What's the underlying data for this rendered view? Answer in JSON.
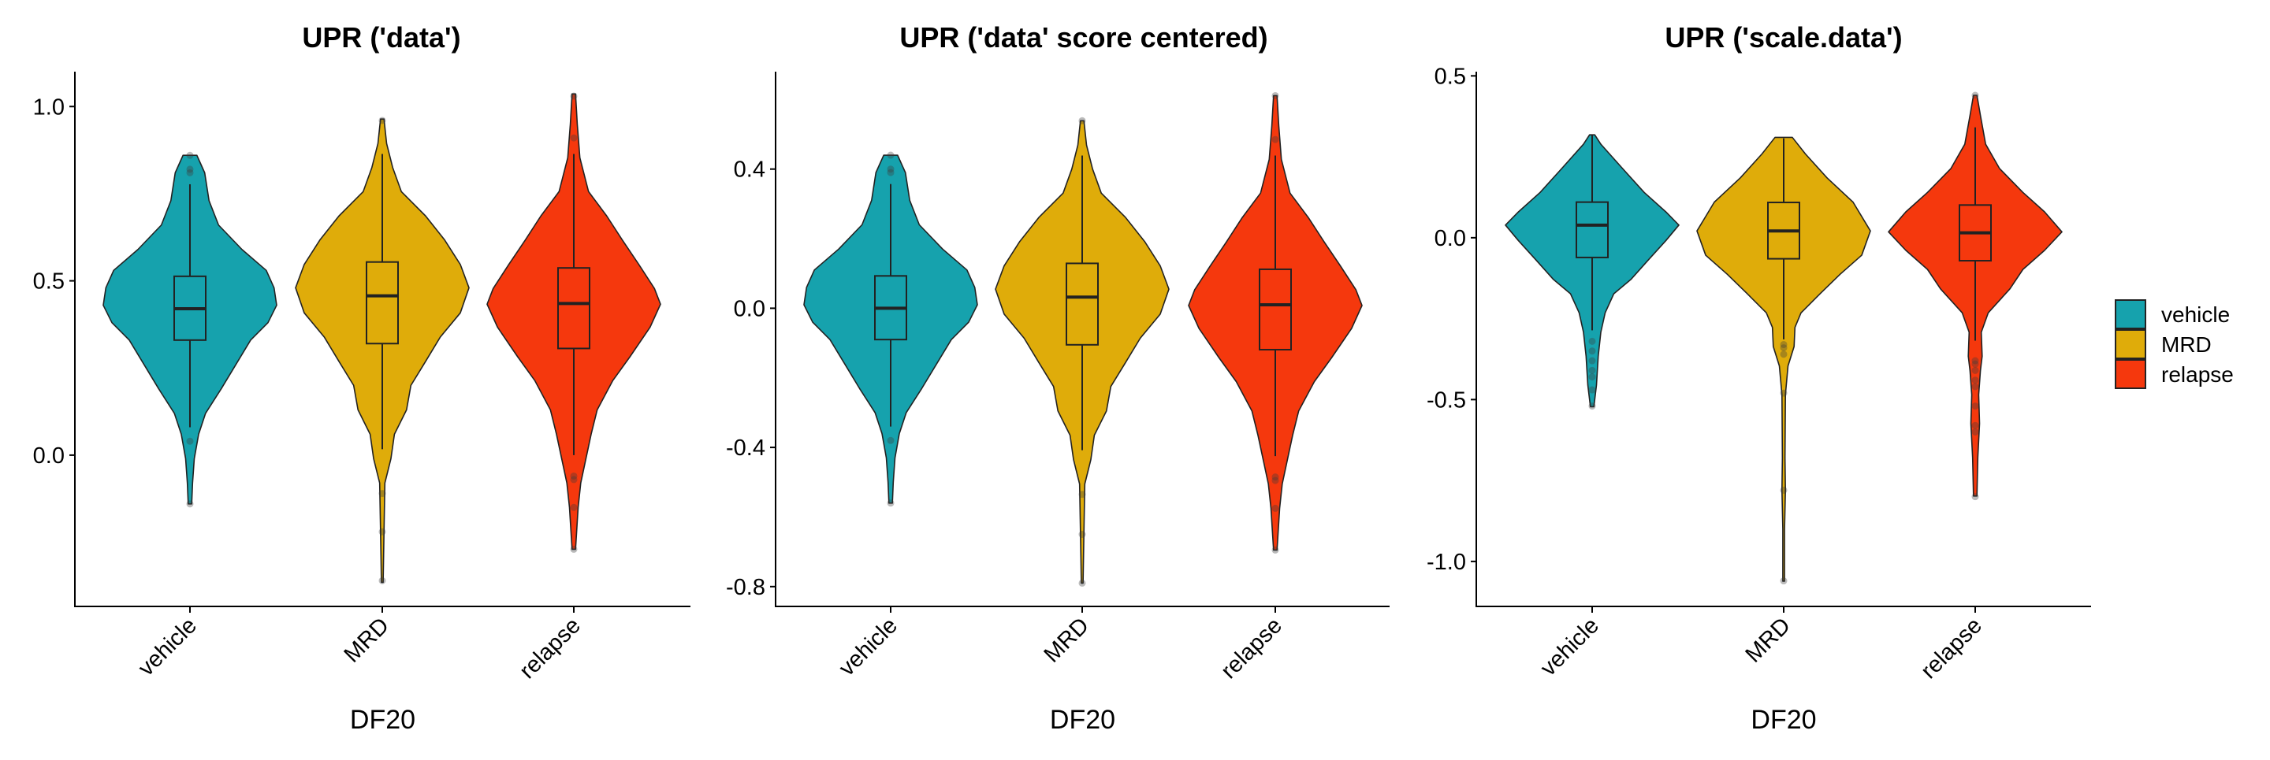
{
  "chart_data": [
    {
      "type": "violin",
      "title": "UPR ('data')",
      "xlabel": "DF20",
      "ylabel": "",
      "ylim": [
        -0.434,
        1.1
      ],
      "yticks": [
        0.0,
        0.5,
        1.0
      ],
      "ytick_labels": [
        "0.0",
        "0.5",
        "1.0"
      ],
      "categories": [
        "vehicle",
        "MRD",
        "relapse"
      ],
      "groups": [
        {
          "name": "vehicle",
          "profile": [
            [
              0.86,
              0.08
            ],
            [
              0.81,
              0.17
            ],
            [
              0.73,
              0.22
            ],
            [
              0.66,
              0.33
            ],
            [
              0.59,
              0.6
            ],
            [
              0.53,
              0.88
            ],
            [
              0.48,
              0.97
            ],
            [
              0.43,
              1.0
            ],
            [
              0.38,
              0.9
            ],
            [
              0.33,
              0.7
            ],
            [
              0.26,
              0.53
            ],
            [
              0.19,
              0.36
            ],
            [
              0.12,
              0.18
            ],
            [
              0.06,
              0.1
            ],
            [
              -0.01,
              0.05
            ],
            [
              -0.08,
              0.03
            ],
            [
              -0.14,
              0.02
            ]
          ],
          "box": {
            "q1": 0.33,
            "median": 0.42,
            "q3": 0.513,
            "whisker_low": 0.08,
            "whisker_high": 0.777
          },
          "outliers": [
            0.86,
            0.82,
            0.81,
            0.04,
            -0.14
          ]
        },
        {
          "name": "MRD",
          "profile": [
            [
              0.964,
              0.02
            ],
            [
              0.894,
              0.05
            ],
            [
              0.825,
              0.12
            ],
            [
              0.756,
              0.22
            ],
            [
              0.686,
              0.5
            ],
            [
              0.617,
              0.72
            ],
            [
              0.547,
              0.9
            ],
            [
              0.48,
              1.0
            ],
            [
              0.408,
              0.9
            ],
            [
              0.339,
              0.67
            ],
            [
              0.269,
              0.5
            ],
            [
              0.2,
              0.33
            ],
            [
              0.13,
              0.28
            ],
            [
              0.06,
              0.14
            ],
            [
              -0.01,
              0.1
            ],
            [
              -0.08,
              0.03
            ],
            [
              -0.22,
              0.02
            ],
            [
              -0.365,
              0.01
            ]
          ],
          "box": {
            "q1": 0.32,
            "median": 0.457,
            "q3": 0.554,
            "whisker_low": 0.017,
            "whisker_high": 0.864
          },
          "outliers": [
            0.96,
            -0.11,
            -0.22,
            -0.36
          ]
        },
        {
          "name": "relapse",
          "profile": [
            [
              1.036,
              0.02
            ],
            [
              0.95,
              0.04
            ],
            [
              0.853,
              0.07
            ],
            [
              0.756,
              0.17
            ],
            [
              0.686,
              0.38
            ],
            [
              0.617,
              0.56
            ],
            [
              0.547,
              0.75
            ],
            [
              0.478,
              0.93
            ],
            [
              0.433,
              1.0
            ],
            [
              0.367,
              0.88
            ],
            [
              0.283,
              0.65
            ],
            [
              0.214,
              0.45
            ],
            [
              0.13,
              0.27
            ],
            [
              0.06,
              0.2
            ],
            [
              -0.01,
              0.14
            ],
            [
              -0.08,
              0.08
            ],
            [
              -0.15,
              0.05
            ],
            [
              -0.27,
              0.02
            ]
          ],
          "box": {
            "q1": 0.306,
            "median": 0.435,
            "q3": 0.537,
            "whisker_low": 0.0,
            "whisker_high": 0.864
          },
          "outliers": [
            1.03,
            0.91,
            -0.06,
            -0.07,
            -0.15,
            -0.27
          ]
        }
      ]
    },
    {
      "type": "violin",
      "title": "UPR ('data' score centered)",
      "xlabel": "DF20",
      "ylabel": "",
      "ylim": [
        -0.857,
        0.68
      ],
      "yticks": [
        -0.8,
        -0.4,
        0.0,
        0.4
      ],
      "ytick_labels": [
        "-0.8",
        "-0.4",
        "0.0",
        "0.4"
      ],
      "categories": [
        "vehicle",
        "MRD",
        "relapse"
      ],
      "groups": [
        {
          "name": "vehicle",
          "profile": [
            [
              0.44,
              0.08
            ],
            [
              0.39,
              0.17
            ],
            [
              0.31,
              0.22
            ],
            [
              0.24,
              0.33
            ],
            [
              0.17,
              0.6
            ],
            [
              0.11,
              0.88
            ],
            [
              0.06,
              0.97
            ],
            [
              0.01,
              1.0
            ],
            [
              -0.04,
              0.9
            ],
            [
              -0.09,
              0.7
            ],
            [
              -0.16,
              0.53
            ],
            [
              -0.23,
              0.36
            ],
            [
              -0.3,
              0.18
            ],
            [
              -0.36,
              0.1
            ],
            [
              -0.43,
              0.05
            ],
            [
              -0.5,
              0.03
            ],
            [
              -0.56,
              0.02
            ]
          ],
          "box": {
            "q1": -0.09,
            "median": 0.0,
            "q3": 0.093,
            "whisker_low": -0.34,
            "whisker_high": 0.357
          },
          "outliers": [
            0.44,
            0.4,
            0.39,
            -0.38,
            -0.56
          ]
        },
        {
          "name": "MRD",
          "profile": [
            [
              0.539,
              0.02
            ],
            [
              0.469,
              0.05
            ],
            [
              0.4,
              0.12
            ],
            [
              0.331,
              0.22
            ],
            [
              0.261,
              0.5
            ],
            [
              0.192,
              0.72
            ],
            [
              0.122,
              0.9
            ],
            [
              0.055,
              1.0
            ],
            [
              -0.017,
              0.9
            ],
            [
              -0.086,
              0.67
            ],
            [
              -0.156,
              0.5
            ],
            [
              -0.225,
              0.33
            ],
            [
              -0.295,
              0.28
            ],
            [
              -0.365,
              0.14
            ],
            [
              -0.435,
              0.1
            ],
            [
              -0.505,
              0.03
            ],
            [
              -0.645,
              0.02
            ],
            [
              -0.79,
              0.01
            ]
          ],
          "box": {
            "q1": -0.105,
            "median": 0.032,
            "q3": 0.129,
            "whisker_low": -0.408,
            "whisker_high": 0.439
          },
          "outliers": [
            0.539,
            -0.535,
            -0.65,
            -0.79
          ]
        },
        {
          "name": "relapse",
          "profile": [
            [
              0.611,
              0.02
            ],
            [
              0.525,
              0.04
            ],
            [
              0.428,
              0.07
            ],
            [
              0.331,
              0.17
            ],
            [
              0.261,
              0.38
            ],
            [
              0.192,
              0.56
            ],
            [
              0.122,
              0.75
            ],
            [
              0.053,
              0.93
            ],
            [
              0.008,
              1.0
            ],
            [
              -0.058,
              0.88
            ],
            [
              -0.142,
              0.65
            ],
            [
              -0.211,
              0.45
            ],
            [
              -0.295,
              0.27
            ],
            [
              -0.365,
              0.2
            ],
            [
              -0.435,
              0.14
            ],
            [
              -0.505,
              0.08
            ],
            [
              -0.575,
              0.05
            ],
            [
              -0.695,
              0.02
            ]
          ],
          "box": {
            "q1": -0.119,
            "median": 0.01,
            "q3": 0.112,
            "whisker_low": -0.425,
            "whisker_high": 0.439
          },
          "outliers": [
            0.611,
            0.485,
            -0.485,
            -0.495,
            -0.575,
            -0.695
          ]
        }
      ]
    },
    {
      "type": "violin",
      "title": "UPR ('scale.data')",
      "xlabel": "DF20",
      "ylabel": "",
      "ylim": [
        -1.139,
        0.513
      ],
      "yticks": [
        -1.0,
        -0.5,
        0.0,
        0.5
      ],
      "ytick_labels": [
        "-1.0",
        "-0.5",
        "0.0",
        "0.5"
      ],
      "categories": [
        "vehicle",
        "MRD",
        "relapse"
      ],
      "groups": [
        {
          "name": "vehicle",
          "profile": [
            [
              0.318,
              0.03
            ],
            [
              0.289,
              0.1
            ],
            [
              0.214,
              0.35
            ],
            [
              0.14,
              0.6
            ],
            [
              0.08,
              0.85
            ],
            [
              0.039,
              1.0
            ],
            [
              -0.009,
              0.85
            ],
            [
              -0.068,
              0.65
            ],
            [
              -0.128,
              0.45
            ],
            [
              -0.173,
              0.25
            ],
            [
              -0.232,
              0.15
            ],
            [
              -0.292,
              0.1
            ],
            [
              -0.366,
              0.07
            ],
            [
              -0.455,
              0.05
            ],
            [
              -0.522,
              0.02
            ]
          ],
          "box": {
            "q1": -0.061,
            "median": 0.039,
            "q3": 0.11,
            "whisker_low": -0.286,
            "whisker_high": 0.316
          },
          "outliers": [
            -0.32,
            -0.35,
            -0.38,
            -0.41,
            -0.43,
            -0.47,
            -0.52
          ]
        },
        {
          "name": "MRD",
          "profile": [
            [
              0.31,
              0.1
            ],
            [
              0.259,
              0.25
            ],
            [
              0.185,
              0.5
            ],
            [
              0.11,
              0.8
            ],
            [
              0.021,
              1.0
            ],
            [
              -0.054,
              0.9
            ],
            [
              -0.113,
              0.65
            ],
            [
              -0.173,
              0.42
            ],
            [
              -0.232,
              0.2
            ],
            [
              -0.277,
              0.13
            ],
            [
              -0.336,
              0.12
            ],
            [
              -0.396,
              0.05
            ],
            [
              -0.485,
              0.02
            ],
            [
              -0.68,
              0.015
            ],
            [
              -0.78,
              0.02
            ],
            [
              -0.9,
              0.01
            ],
            [
              -1.061,
              0.01
            ]
          ],
          "box": {
            "q1": -0.065,
            "median": 0.021,
            "q3": 0.109,
            "whisker_low": -0.314,
            "whisker_high": 0.307
          },
          "outliers": [
            -0.33,
            -0.34,
            -0.36,
            -0.48,
            -0.78,
            -1.06
          ]
        },
        {
          "name": "relapse",
          "profile": [
            [
              0.44,
              0.02
            ],
            [
              0.378,
              0.06
            ],
            [
              0.289,
              0.12
            ],
            [
              0.214,
              0.28
            ],
            [
              0.14,
              0.55
            ],
            [
              0.08,
              0.8
            ],
            [
              0.018,
              1.0
            ],
            [
              -0.039,
              0.8
            ],
            [
              -0.098,
              0.55
            ],
            [
              -0.158,
              0.4
            ],
            [
              -0.232,
              0.15
            ],
            [
              -0.292,
              0.07
            ],
            [
              -0.366,
              0.08
            ],
            [
              -0.411,
              0.06
            ],
            [
              -0.485,
              0.04
            ],
            [
              -0.574,
              0.05
            ],
            [
              -0.679,
              0.03
            ],
            [
              -0.798,
              0.02
            ]
          ],
          "box": {
            "q1": -0.071,
            "median": 0.015,
            "q3": 0.101,
            "whisker_low": -0.318,
            "whisker_high": 0.341
          },
          "outliers": [
            0.44,
            -0.38,
            -0.39,
            -0.41,
            -0.44,
            -0.46,
            -0.52,
            -0.58,
            -0.6,
            -0.8
          ]
        }
      ]
    }
  ],
  "legend": {
    "placement": "right",
    "items": [
      {
        "label": "vehicle",
        "color": "#16A2AD"
      },
      {
        "label": "MRD",
        "color": "#DFAC0A"
      },
      {
        "label": "relapse",
        "color": "#F5380D"
      }
    ]
  }
}
